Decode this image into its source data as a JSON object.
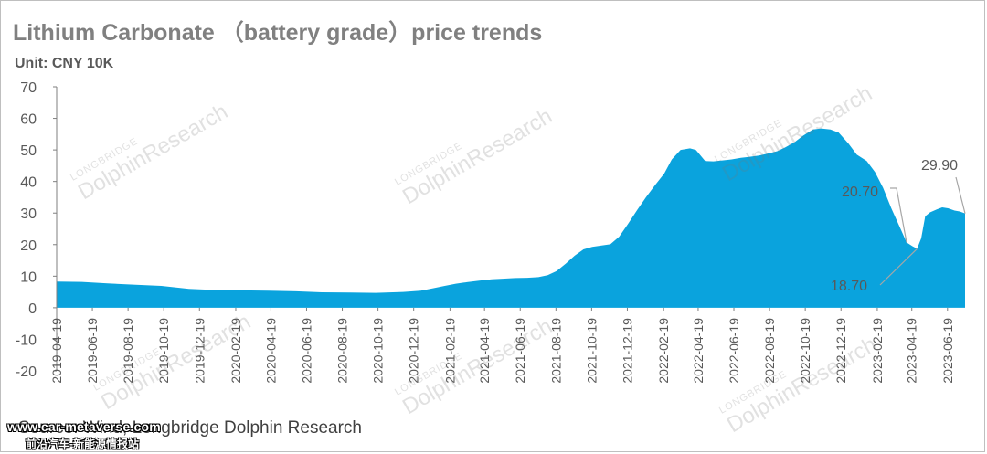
{
  "header": {
    "title": "Lithium Carbonate （battery grade）price trends",
    "unit": "Unit: CNY 10K"
  },
  "footer": {
    "source": "Source: Wind, Longbridge Dolphin Research",
    "site_url": "www.car-metaverse.com",
    "site_name": "前沿汽车-新能源情报站"
  },
  "watermark": {
    "brand": "LONGBRIDGE",
    "name": "DolphinResearch"
  },
  "colors": {
    "area": "#0aa3dd",
    "text": "#595959",
    "axis": "#7f7f7f"
  },
  "chart_data": {
    "type": "area",
    "ylim": [
      -20,
      70
    ],
    "yticks": [
      -20,
      -10,
      0,
      10,
      20,
      30,
      40,
      50,
      60,
      70
    ],
    "xlim": [
      "2019-04-19",
      "2023-07-19"
    ],
    "xticks": [
      "2019-04-19",
      "2019-06-19",
      "2019-08-19",
      "2019-10-19",
      "2019-12-19",
      "2020-02-19",
      "2020-04-19",
      "2020-06-19",
      "2020-08-19",
      "2020-10-19",
      "2020-12-19",
      "2021-02-19",
      "2021-04-19",
      "2021-06-19",
      "2021-08-19",
      "2021-10-19",
      "2021-12-19",
      "2022-02-19",
      "2022-04-19",
      "2022-06-19",
      "2022-08-19",
      "2022-10-19",
      "2022-12-19",
      "2023-02-19",
      "2023-04-19",
      "2023-06-19"
    ],
    "series": [
      {
        "x": [
          "2019-04-19",
          "2019-06-01",
          "2019-07-15",
          "2019-09-01",
          "2019-10-15",
          "2019-12-01",
          "2020-01-15",
          "2020-03-01",
          "2020-04-15",
          "2020-06-01",
          "2020-07-15",
          "2020-09-01",
          "2020-10-15",
          "2020-12-01",
          "2020-12-31",
          "2021-01-20",
          "2021-02-10",
          "2021-03-01",
          "2021-03-20",
          "2021-04-10",
          "2021-05-01",
          "2021-05-20",
          "2021-06-10",
          "2021-07-01",
          "2021-07-20",
          "2021-08-05",
          "2021-08-20",
          "2021-09-05",
          "2021-09-20",
          "2021-10-05",
          "2021-10-20",
          "2021-11-05",
          "2021-11-20",
          "2021-12-05",
          "2021-12-20",
          "2022-01-05",
          "2022-01-20",
          "2022-02-05",
          "2022-02-20",
          "2022-03-05",
          "2022-03-20",
          "2022-04-05",
          "2022-04-15",
          "2022-05-01",
          "2022-05-15",
          "2022-06-01",
          "2022-06-15",
          "2022-07-01",
          "2022-07-15",
          "2022-08-01",
          "2022-08-15",
          "2022-09-01",
          "2022-09-15",
          "2022-10-01",
          "2022-10-15",
          "2022-11-01",
          "2022-11-15",
          "2022-12-01",
          "2022-12-15",
          "2023-01-01",
          "2023-01-15",
          "2023-02-01",
          "2023-02-15",
          "2023-03-01",
          "2023-03-15",
          "2023-04-01",
          "2023-04-10",
          "2023-04-20",
          "2023-04-28",
          "2023-05-05",
          "2023-05-12",
          "2023-05-20",
          "2023-06-01",
          "2023-06-10",
          "2023-06-20",
          "2023-07-01",
          "2023-07-10",
          "2023-07-19"
        ],
        "values": [
          8.3,
          8.2,
          7.7,
          7.3,
          6.9,
          6.0,
          5.6,
          5.5,
          5.4,
          5.2,
          4.9,
          4.8,
          4.7,
          5.0,
          5.4,
          6.1,
          6.9,
          7.6,
          8.1,
          8.6,
          9.0,
          9.2,
          9.4,
          9.5,
          9.7,
          10.3,
          11.6,
          14.0,
          16.5,
          18.5,
          19.3,
          19.7,
          20.1,
          22.5,
          26.5,
          31.0,
          35.0,
          39.0,
          42.5,
          47.0,
          50.0,
          50.5,
          50.0,
          46.5,
          46.4,
          46.7,
          47.0,
          47.5,
          47.8,
          48.2,
          48.8,
          49.6,
          50.8,
          52.5,
          54.5,
          56.5,
          56.8,
          56.5,
          55.5,
          52.0,
          48.5,
          46.5,
          43.0,
          38.0,
          31.5,
          24.5,
          20.7,
          19.5,
          18.7,
          22.0,
          29.0,
          30.2,
          31.2,
          31.8,
          31.5,
          30.8,
          30.5,
          29.9
        ]
      }
    ],
    "annotations": [
      {
        "label": "29.90",
        "x": "2023-07-19",
        "y": 29.9
      },
      {
        "label": "20.70",
        "x": "2023-04-10",
        "y": 20.7
      },
      {
        "label": "18.70",
        "x": "2023-04-28",
        "y": 18.7
      }
    ]
  }
}
